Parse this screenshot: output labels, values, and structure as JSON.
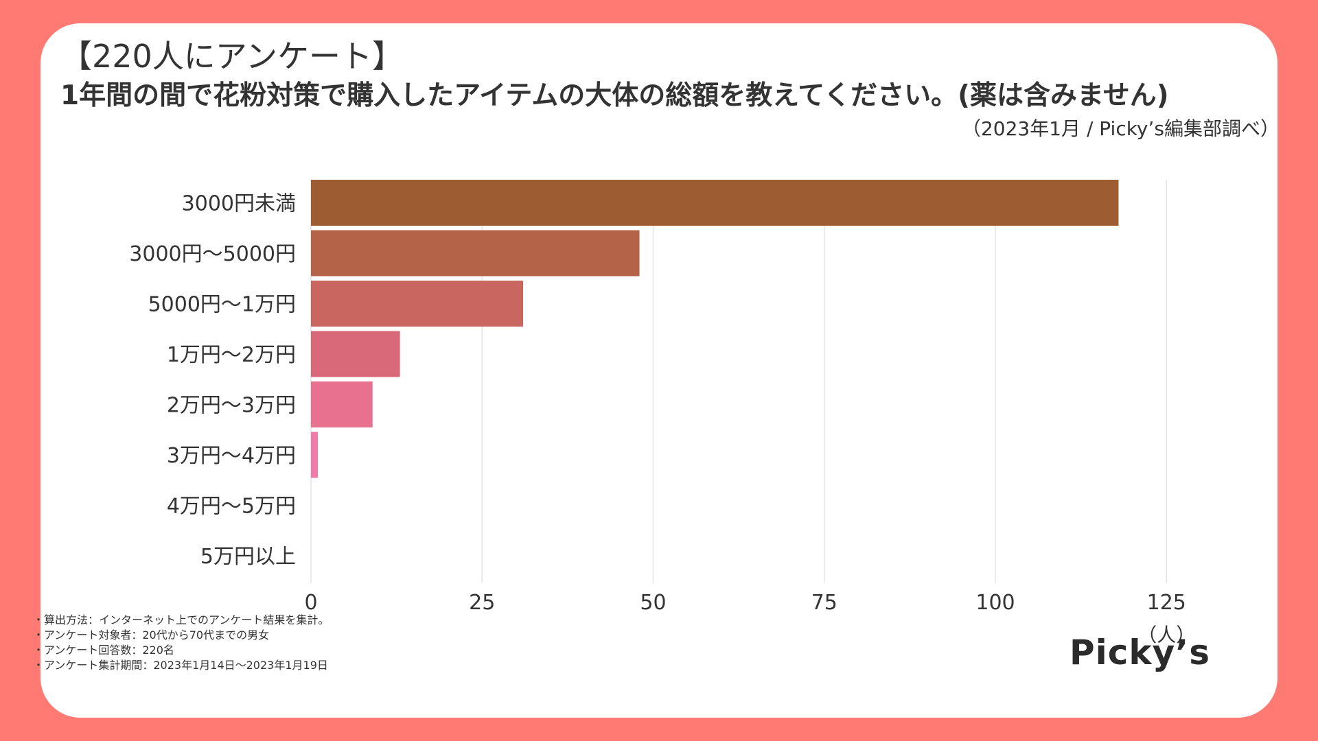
{
  "title": {
    "line1": "【220人にアンケート】",
    "line2": "1年間の間で花粉対策で購入したアイテムの大体の総額を教えてください。(薬は含みません)"
  },
  "source": "（2023年1月 / Picky’s編集部調べ）",
  "notes": [
    "・算出方法：インターネット上でのアンケート結果を集計。",
    "・アンケート対象者：20代から70代までの男女",
    "・アンケート回答数：220名",
    "・アンケート集計期間：2023年1月14日〜2023年1月19日"
  ],
  "logo": "Picky’s",
  "chart_data": {
    "type": "bar",
    "orientation": "horizontal",
    "categories": [
      "3000円未満",
      "3000円〜5000円",
      "5000円〜1万円",
      "1万円〜2万円",
      "2万円〜3万円",
      "3万円〜4万円",
      "4万円〜5万円",
      "5万円以上"
    ],
    "values": [
      118,
      48,
      31,
      13,
      9,
      1,
      0,
      0
    ],
    "colors": [
      "#9E5C33",
      "#B56348",
      "#C9665F",
      "#D96878",
      "#E8718F",
      "#F07BA8",
      "#F07BA8",
      "#F07BA8"
    ],
    "xlim": [
      0,
      135
    ],
    "xticks": [
      0,
      25,
      50,
      75,
      100,
      125
    ],
    "unit_label": "（人）",
    "grid": true
  }
}
